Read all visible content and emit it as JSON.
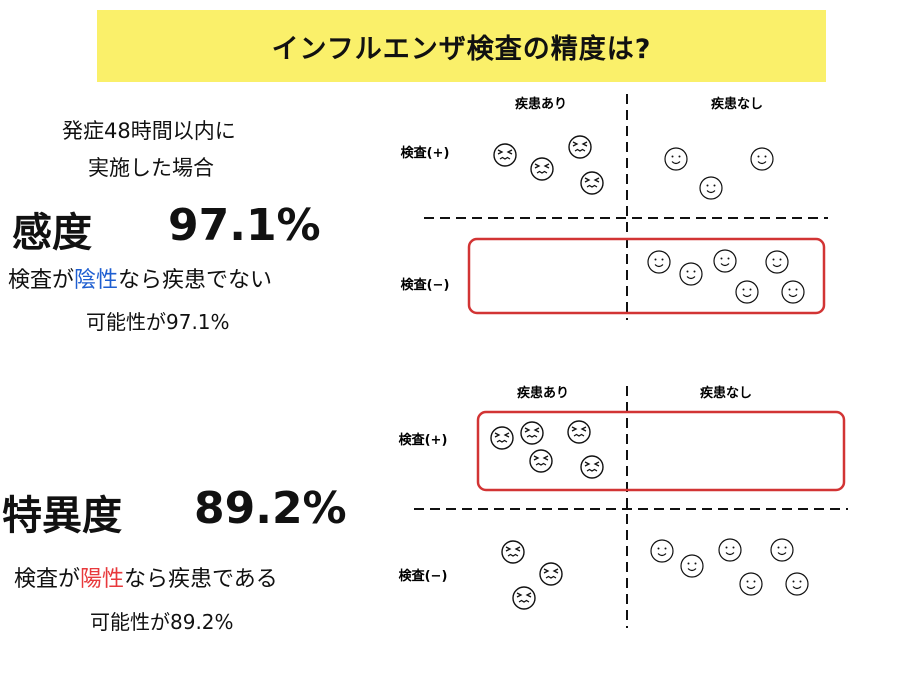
{
  "title": "インフルエンザ検査の精度は?",
  "condition": {
    "line1": "発症48時間以内に",
    "line2": "実施した場合"
  },
  "sensitivity": {
    "label": "感度",
    "value": "97.1%",
    "desc_prefix": "検査が",
    "desc_highlight": "陰性",
    "desc_suffix": "なら疾患でない",
    "desc_line2": "可能性が97.1%"
  },
  "specificity": {
    "label": "特異度",
    "value": "89.2%",
    "desc_prefix": "検査が",
    "desc_highlight": "陽性",
    "desc_suffix": "なら疾患である",
    "desc_line2": "可能性が89.2%"
  },
  "diagram_top": {
    "col_disease": "疾患あり",
    "col_no_disease": "疾患なし",
    "row_positive": "検査(+)",
    "row_negative": "検査(−)",
    "highlight_row": "検査(−)"
  },
  "diagram_bottom": {
    "col_disease": "疾患あり",
    "col_no_disease": "疾患なし",
    "row_positive": "検査(+)",
    "row_negative": "検査(−)",
    "highlight_row": "検査(+)"
  },
  "colors": {
    "banner": "#faf06a",
    "highlight_box": "#d23434",
    "negative_word": "#1e5ed1",
    "positive_word": "#e8393c"
  },
  "icons": {
    "disease": "sick-face-icon",
    "healthy": "smiley-face-icon"
  }
}
